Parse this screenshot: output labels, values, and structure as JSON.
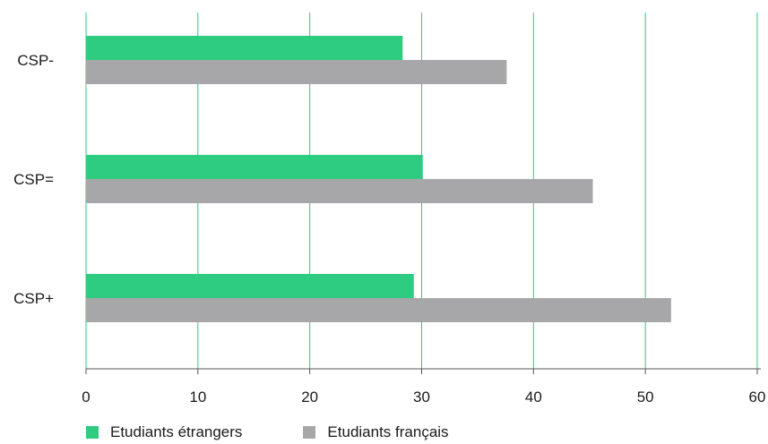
{
  "chart_data": {
    "type": "bar",
    "orientation": "horizontal",
    "categories": [
      "CSP-",
      "CSP=",
      "CSP+"
    ],
    "series": [
      {
        "name": "Etudiants étrangers",
        "color": "#2ecc80",
        "values": [
          28.3,
          30.1,
          29.3
        ]
      },
      {
        "name": "Etudiants français",
        "color": "#a7a7a9",
        "values": [
          37.6,
          45.3,
          52.3
        ]
      }
    ],
    "xlim": [
      0,
      60
    ],
    "x_ticks": [
      0,
      10,
      20,
      30,
      40,
      50,
      60
    ],
    "grid": true,
    "grid_color": "#2ecc80",
    "legend_position": "bottom-left"
  }
}
